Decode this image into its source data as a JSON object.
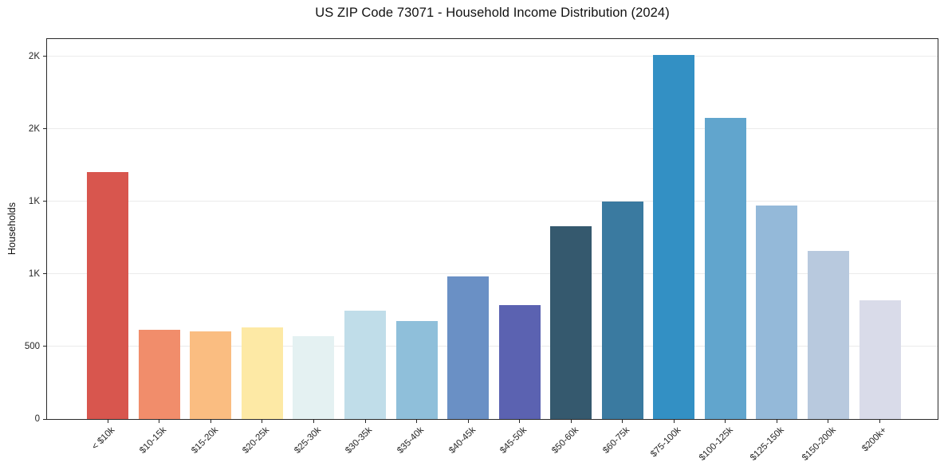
{
  "title": "US ZIP Code 73071 - Household Income Distribution (2024)",
  "chart_data": {
    "type": "bar",
    "title": "US ZIP Code 73071 - Household Income Distribution (2024)",
    "xlabel": "",
    "ylabel": "Households",
    "categories": [
      "< $10k",
      "$10-15k",
      "$15-20k",
      "$20-25k",
      "$25-30k",
      "$30-35k",
      "$35-40k",
      "$40-45k",
      "$45-50k",
      "$50-60k",
      "$60-75k",
      "$75-100k",
      "$100-125k",
      "$125-150k",
      "$150-200k",
      "$200k+"
    ],
    "values": [
      1705,
      617,
      603,
      633,
      573,
      746,
      673,
      981,
      784,
      1328,
      1499,
      2511,
      2076,
      1473,
      1160,
      820
    ],
    "bar_colors": [
      "#d8564e",
      "#f18d6b",
      "#fabd81",
      "#fde9a5",
      "#e4f1f2",
      "#c0dde9",
      "#8fbfda",
      "#6a90c5",
      "#5b62b1",
      "#35596e",
      "#3a7aa0",
      "#3390c4",
      "#61a5cd",
      "#94b9d9",
      "#b8c9de",
      "#d9dbe9"
    ],
    "ylim": [
      0,
      2620
    ],
    "yticks": [
      {
        "value": 0,
        "label": "0"
      },
      {
        "value": 500,
        "label": "500"
      },
      {
        "value": 1000,
        "label": "1K"
      },
      {
        "value": 1500,
        "label": "1K"
      },
      {
        "value": 2000,
        "label": "2K"
      },
      {
        "value": 2500,
        "label": "2K"
      }
    ],
    "grid": "horizontal",
    "legend": "none",
    "background": "#ffffff"
  }
}
